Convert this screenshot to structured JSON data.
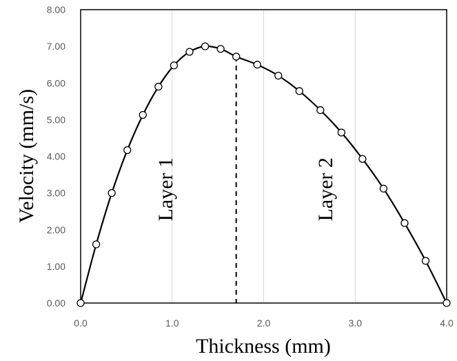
{
  "chart_data": {
    "type": "line",
    "xlabel": "Thickness (mm)",
    "ylabel": "Velocity  (mm/s)",
    "xlim": [
      0,
      4
    ],
    "ylim": [
      0,
      8
    ],
    "xticks": [
      "0.0",
      "1.0",
      "2.0",
      "3.0",
      "4.0"
    ],
    "yticks": [
      "0.00",
      "1.00",
      "2.00",
      "3.00",
      "4.00",
      "5.00",
      "6.00",
      "7.00",
      "8.00"
    ],
    "grid": "vertical",
    "series": [
      {
        "x": [
          0.0,
          0.17,
          0.34,
          0.51,
          0.68,
          0.85,
          1.02,
          1.19,
          1.36,
          1.53,
          1.7,
          1.93,
          2.16,
          2.39,
          2.62,
          2.85,
          3.08,
          3.31,
          3.54,
          3.77,
          4.0
        ],
        "y": [
          0.0,
          1.6,
          3.0,
          4.17,
          5.13,
          5.9,
          6.48,
          6.85,
          7.0,
          6.93,
          6.72,
          6.5,
          6.2,
          5.78,
          5.26,
          4.65,
          3.93,
          3.12,
          2.18,
          1.15,
          0.0
        ]
      }
    ],
    "divider_x": 1.7,
    "annotations": [
      {
        "text": "Layer 1",
        "x": 1.0,
        "y": 3.1
      },
      {
        "text": "Layer 2",
        "x": 2.75,
        "y": 3.1
      }
    ],
    "colors": {
      "line": "#000000",
      "marker_fill": "#ffffff",
      "grid": "#d9d9d9",
      "tick_text": "#595959"
    }
  }
}
